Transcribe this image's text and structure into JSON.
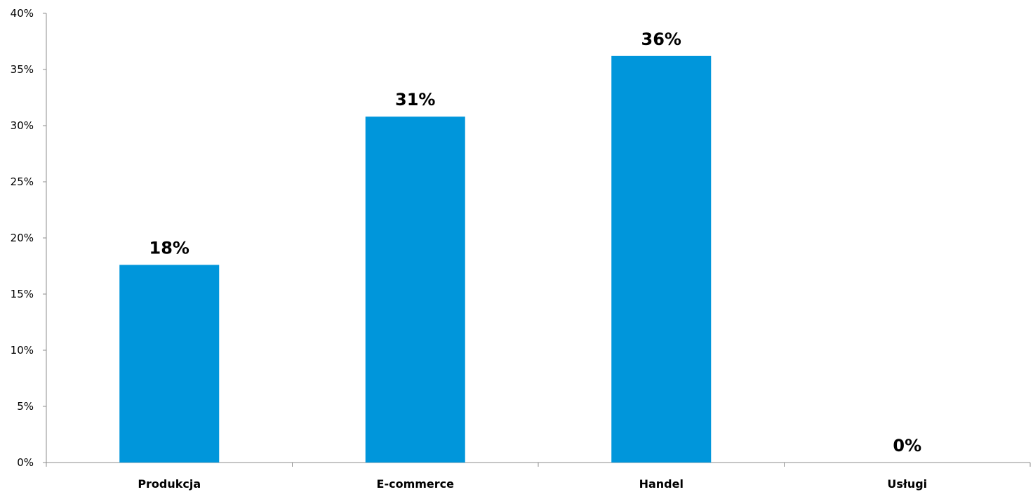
{
  "chart_data": {
    "type": "bar",
    "categories": [
      "Produkcja",
      "E-commerce",
      "Handel",
      "Usługi"
    ],
    "values": [
      17.6,
      30.8,
      36.2,
      0
    ],
    "data_labels": [
      "18%",
      "31%",
      "36%",
      "0%"
    ],
    "y_ticks": [
      0,
      5,
      10,
      15,
      20,
      25,
      30,
      35,
      40
    ],
    "y_tick_labels": [
      "0%",
      "5%",
      "10%",
      "15%",
      "20%",
      "25%",
      "30%",
      "35%",
      "40%"
    ],
    "ylim": [
      0,
      40
    ],
    "grid": false,
    "legend": "none",
    "bar_color": "#0096db",
    "title": "",
    "xlabel": "",
    "ylabel": ""
  }
}
